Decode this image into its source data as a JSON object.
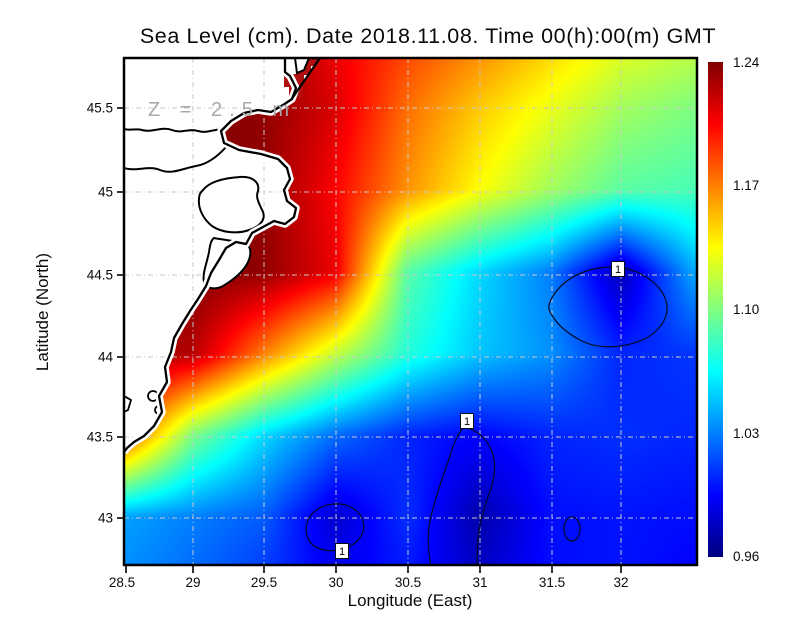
{
  "title": "Sea Level (cm). Date 2018.11.08. Time 00(h):00(m) GMT",
  "annotation": "Z = 2.5 m",
  "axes": {
    "x": {
      "label": "Longitude (East)",
      "tick_labels": [
        "28.5",
        "29",
        "29.5",
        "30",
        "30.5",
        "31",
        "31.5",
        "32"
      ]
    },
    "y": {
      "label": "Latitude (North)",
      "tick_labels": [
        "45.5",
        "45",
        "44.5",
        "44",
        "43.5",
        "43"
      ]
    }
  },
  "colorbar": {
    "tick_labels": [
      "1.24",
      "1.17",
      "1.10",
      "1.03",
      "0.96"
    ],
    "vmin": 0.96,
    "vmax": 1.24,
    "colormap": "jet"
  },
  "contours": {
    "level": 1.0,
    "labels": [
      {
        "text": "1",
        "lon": 31.98,
        "lat": 44.51
      },
      {
        "text": "1",
        "lon": 30.92,
        "lat": 43.58
      },
      {
        "text": "1",
        "lon": 29.99,
        "lat": 42.97
      }
    ]
  },
  "chart_data": {
    "type": "heatmap",
    "subtype": "filled-contour-map",
    "title": "Sea Level (cm). Date 2018.11.08. Time 00(h):00(m) GMT",
    "xlabel": "Longitude (East)",
    "ylabel": "Latitude (North)",
    "annotation": "Z = 2.5 m",
    "lon_range": [
      28.52,
      32.53
    ],
    "lat_range": [
      42.71,
      45.8
    ],
    "x_ticks": [
      28.5,
      29,
      29.5,
      30,
      30.5,
      31,
      31.5,
      32
    ],
    "y_ticks": [
      45.5,
      45,
      44.5,
      44,
      43.5,
      43
    ],
    "colorbar": {
      "vmin": 0.96,
      "vmax": 1.24,
      "ticks": [
        1.24,
        1.17,
        1.1,
        1.03,
        0.96
      ],
      "colormap": "jet",
      "position": "right"
    },
    "gridlines": true,
    "land_color": "#ffffff",
    "region": "western Black Sea coast (Danube Delta to Bulgarian coast)",
    "contour_level": 1.0,
    "lows": [
      {
        "lon": 31.94,
        "lat": 44.28,
        "value": 0.965
      },
      {
        "lon": 30.92,
        "lat": 43.17,
        "value": 0.965
      },
      {
        "lon": 29.99,
        "lat": 42.94,
        "value": 0.97
      },
      {
        "lon": 31.65,
        "lat": 42.95,
        "value": 0.99
      }
    ],
    "grid": {
      "lons": [
        28.5,
        29.0,
        29.5,
        30.0,
        30.5,
        31.0,
        31.5,
        32.0,
        32.5
      ],
      "lats": [
        45.8,
        45.5,
        45.0,
        44.5,
        44.0,
        43.5,
        43.0,
        42.7
      ],
      "values": [
        [
          1.24,
          1.24,
          1.235,
          1.21,
          1.185,
          1.165,
          1.145,
          1.125,
          1.115
        ],
        [
          1.24,
          1.24,
          1.235,
          1.215,
          1.175,
          1.15,
          1.13,
          1.11,
          1.1
        ],
        [
          1.24,
          1.24,
          1.235,
          1.205,
          1.165,
          1.135,
          1.11,
          1.09,
          1.085
        ],
        [
          1.24,
          1.24,
          1.235,
          1.21,
          1.09,
          1.055,
          1.03,
          0.975,
          1.04
        ],
        [
          1.235,
          1.225,
          1.17,
          1.12,
          1.075,
          1.05,
          1.035,
          1.005,
          1.01
        ],
        [
          1.19,
          1.1,
          1.055,
          1.025,
          1.005,
          0.995,
          1.005,
          1.008,
          1.005
        ],
        [
          1.04,
          1.03,
          1.02,
          0.982,
          1.008,
          0.972,
          0.998,
          1.0,
          0.998
        ],
        [
          1.035,
          1.025,
          1.012,
          0.99,
          1.002,
          0.978,
          0.998,
          1.0,
          0.995
        ]
      ],
      "note": "values estimated from jet color field; grid points under the white land mask hold the adjacent coastal sea value"
    }
  }
}
